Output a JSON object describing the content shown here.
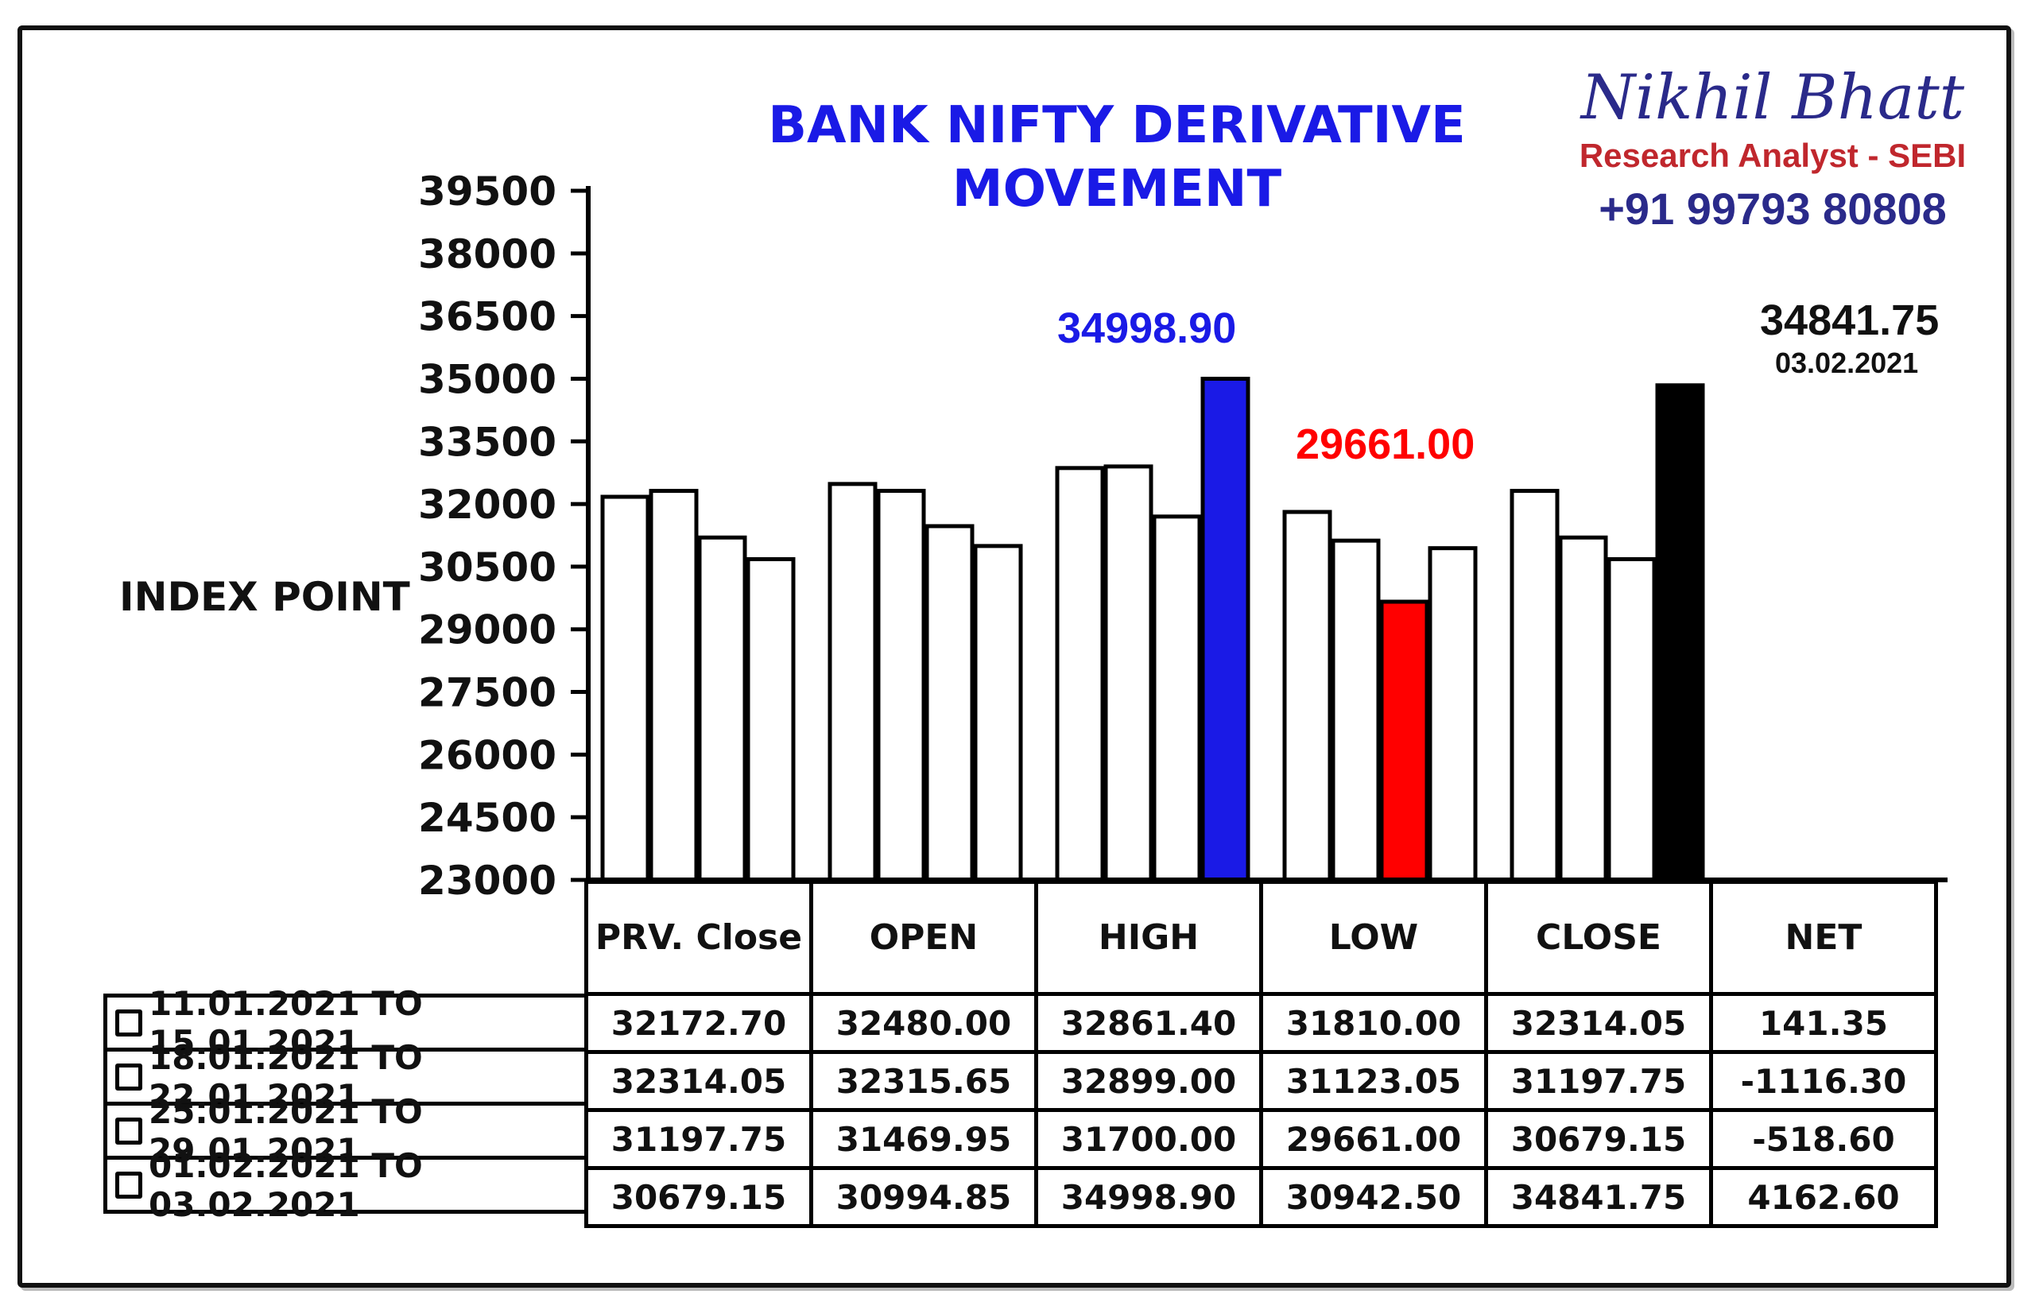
{
  "title": {
    "line1": "BANK NIFTY DERIVATIVE",
    "line2": "MOVEMENT"
  },
  "brand": {
    "name": "Nikhil Bhatt",
    "role": "Research Analyst - SEBI",
    "phone": "+91 99793 80808"
  },
  "colors": {
    "title": "#1a1ae6",
    "high": "#1a1ae6",
    "low": "#ff0000",
    "close": "#000000",
    "default_bar": "#ffffff"
  },
  "annotations": {
    "high": "34998.90",
    "low": "29661.00",
    "close_value": "34841.75",
    "close_date": "03.02.2021"
  },
  "chart_data": {
    "type": "bar",
    "title": "BANK NIFTY DERIVATIVE MOVEMENT",
    "ylabel": "INDEX POINT",
    "ylim": [
      23000,
      39500
    ],
    "yticks": [
      "39500",
      "38000",
      "36500",
      "35000",
      "33500",
      "32000",
      "30500",
      "29000",
      "27500",
      "26000",
      "24500",
      "23000"
    ],
    "categories": [
      "PRV. Close",
      "OPEN",
      "HIGH",
      "LOW",
      "CLOSE"
    ],
    "series": [
      {
        "name": "11.01.2021 TO 15.01.2021",
        "values": [
          32172.7,
          32480.0,
          32861.4,
          31810.0,
          32314.05
        ]
      },
      {
        "name": "18.01.2021 TO 22.01.2021",
        "values": [
          32314.05,
          32315.65,
          32899.0,
          31123.05,
          31197.75
        ]
      },
      {
        "name": "25.01.2021 TO 29.01.2021",
        "values": [
          31197.75,
          31469.95,
          31700.0,
          29661.0,
          30679.15
        ]
      },
      {
        "name": "01.02.2021 TO 03.02.2021",
        "values": [
          30679.15,
          30994.85,
          34998.9,
          30942.5,
          34841.75
        ]
      }
    ]
  },
  "table": {
    "headers": [
      "PRV. Close",
      "OPEN",
      "HIGH",
      "LOW",
      "CLOSE",
      "NET"
    ],
    "rows": [
      {
        "label": "11.01.2021 TO 15.01.2021",
        "cells": [
          "32172.70",
          "32480.00",
          "32861.40",
          "31810.00",
          "32314.05",
          "141.35"
        ]
      },
      {
        "label": "18.01.2021 TO 22.01.2021",
        "cells": [
          "32314.05",
          "32315.65",
          "32899.00",
          "31123.05",
          "31197.75",
          "-1116.30"
        ]
      },
      {
        "label": "25.01.2021 TO 29.01.2021",
        "cells": [
          "31197.75",
          "31469.95",
          "31700.00",
          "29661.00",
          "30679.15",
          "-518.60"
        ]
      },
      {
        "label": "01.02.2021 TO 03.02.2021",
        "cells": [
          "30679.15",
          "30994.85",
          "34998.90",
          "30942.50",
          "34841.75",
          "4162.60"
        ]
      }
    ]
  }
}
